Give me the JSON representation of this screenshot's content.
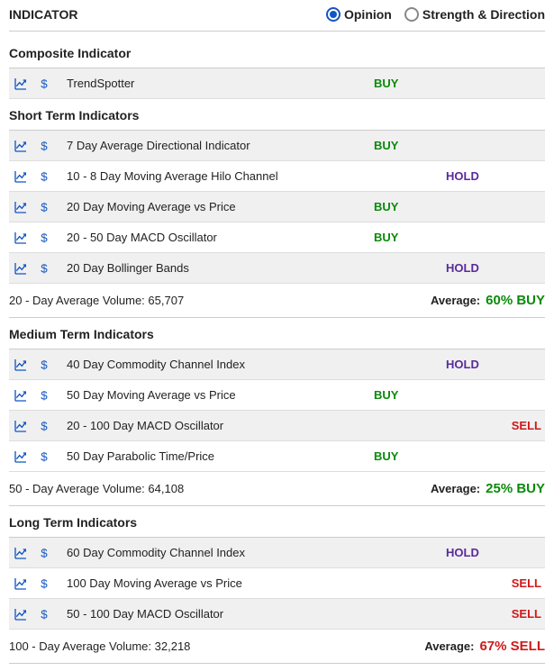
{
  "header": {
    "title": "INDICATOR",
    "options": {
      "opinion": "Opinion",
      "strength": "Strength & Direction"
    },
    "selected": "opinion"
  },
  "colors": {
    "buy": "#0a8a0a",
    "hold": "#5a2a9c",
    "sell": "#d01919",
    "link": "#1256c4",
    "row_alt_bg": "#f0f0f0",
    "border": "#cccccc"
  },
  "sections": [
    {
      "title": "Composite Indicator",
      "rows": [
        {
          "name": "TrendSpotter",
          "signal": "BUY"
        }
      ]
    },
    {
      "title": "Short Term Indicators",
      "rows": [
        {
          "name": "7 Day Average Directional Indicator",
          "signal": "BUY"
        },
        {
          "name": "10 - 8 Day Moving Average Hilo Channel",
          "signal": "HOLD"
        },
        {
          "name": "20 Day Moving Average vs Price",
          "signal": "BUY"
        },
        {
          "name": "20 - 50 Day MACD Oscillator",
          "signal": "BUY"
        },
        {
          "name": "20 Day Bollinger Bands",
          "signal": "HOLD"
        }
      ],
      "summary": {
        "volume_label": "20 - Day Average Volume: 65,707",
        "avg_label": "Average:",
        "pct": "60% BUY",
        "signal": "BUY"
      }
    },
    {
      "title": "Medium Term Indicators",
      "rows": [
        {
          "name": "40 Day Commodity Channel Index",
          "signal": "HOLD"
        },
        {
          "name": "50 Day Moving Average vs Price",
          "signal": "BUY"
        },
        {
          "name": "20 - 100 Day MACD Oscillator",
          "signal": "SELL"
        },
        {
          "name": "50 Day Parabolic Time/Price",
          "signal": "BUY"
        }
      ],
      "summary": {
        "volume_label": "50 - Day Average Volume: 64,108",
        "avg_label": "Average:",
        "pct": "25% BUY",
        "signal": "BUY"
      }
    },
    {
      "title": "Long Term Indicators",
      "rows": [
        {
          "name": "60 Day Commodity Channel Index",
          "signal": "HOLD"
        },
        {
          "name": "100 Day Moving Average vs Price",
          "signal": "SELL"
        },
        {
          "name": "50 - 100 Day MACD Oscillator",
          "signal": "SELL"
        }
      ],
      "summary": {
        "volume_label": "100 - Day Average Volume: 32,218",
        "avg_label": "Average:",
        "pct": "67% SELL",
        "signal": "SELL"
      }
    }
  ]
}
